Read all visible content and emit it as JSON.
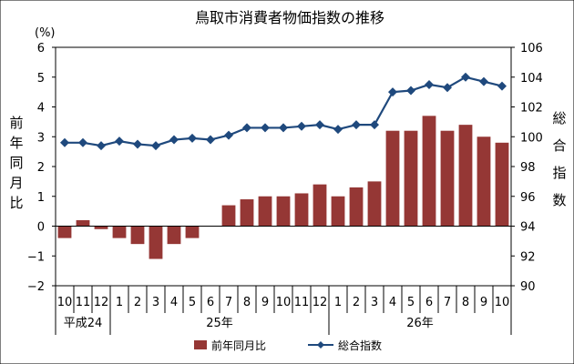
{
  "chart_data": {
    "type": "bar",
    "title": "鳥取市消費者物価指数の推移",
    "left_unit": "(%)",
    "left_axis_label": "前年同月比",
    "right_axis_label": "総合指数",
    "categories": [
      "10",
      "11",
      "12",
      "1",
      "2",
      "3",
      "4",
      "5",
      "6",
      "7",
      "8",
      "9",
      "10",
      "11",
      "12",
      "1",
      "2",
      "3",
      "4",
      "5",
      "6",
      "7",
      "8",
      "9",
      "10"
    ],
    "year_groups": [
      {
        "label": "平成24",
        "count": 3
      },
      {
        "label": "25年",
        "count": 12
      },
      {
        "label": "26年",
        "count": 10
      }
    ],
    "ylim_left": [
      -2,
      6
    ],
    "yticks_left": [
      "-2",
      "-1",
      "0",
      "1",
      "2",
      "3",
      "4",
      "5",
      "6"
    ],
    "ylim_right": [
      90,
      106
    ],
    "yticks_right": [
      "90",
      "92",
      "94",
      "96",
      "98",
      "100",
      "102",
      "104",
      "106"
    ],
    "series": [
      {
        "name": "前年同月比",
        "type": "bar",
        "axis": "left",
        "color": "#953735",
        "values": [
          -0.4,
          0.2,
          -0.1,
          -0.4,
          -0.6,
          -1.1,
          -0.6,
          -0.4,
          0.0,
          0.7,
          0.9,
          1.0,
          1.0,
          1.1,
          1.4,
          1.0,
          1.3,
          1.5,
          3.2,
          3.2,
          3.7,
          3.2,
          3.4,
          3.0,
          2.8
        ]
      },
      {
        "name": "総合指数",
        "type": "line",
        "axis": "right",
        "color": "#1f497d",
        "values": [
          99.6,
          99.6,
          99.4,
          99.7,
          99.5,
          99.4,
          99.8,
          99.9,
          99.8,
          100.1,
          100.6,
          100.6,
          100.6,
          100.7,
          100.8,
          100.5,
          100.8,
          100.8,
          103.0,
          103.1,
          103.5,
          103.3,
          104.0,
          103.7,
          103.4
        ]
      }
    ],
    "legend_position": "bottom",
    "grid": false
  }
}
